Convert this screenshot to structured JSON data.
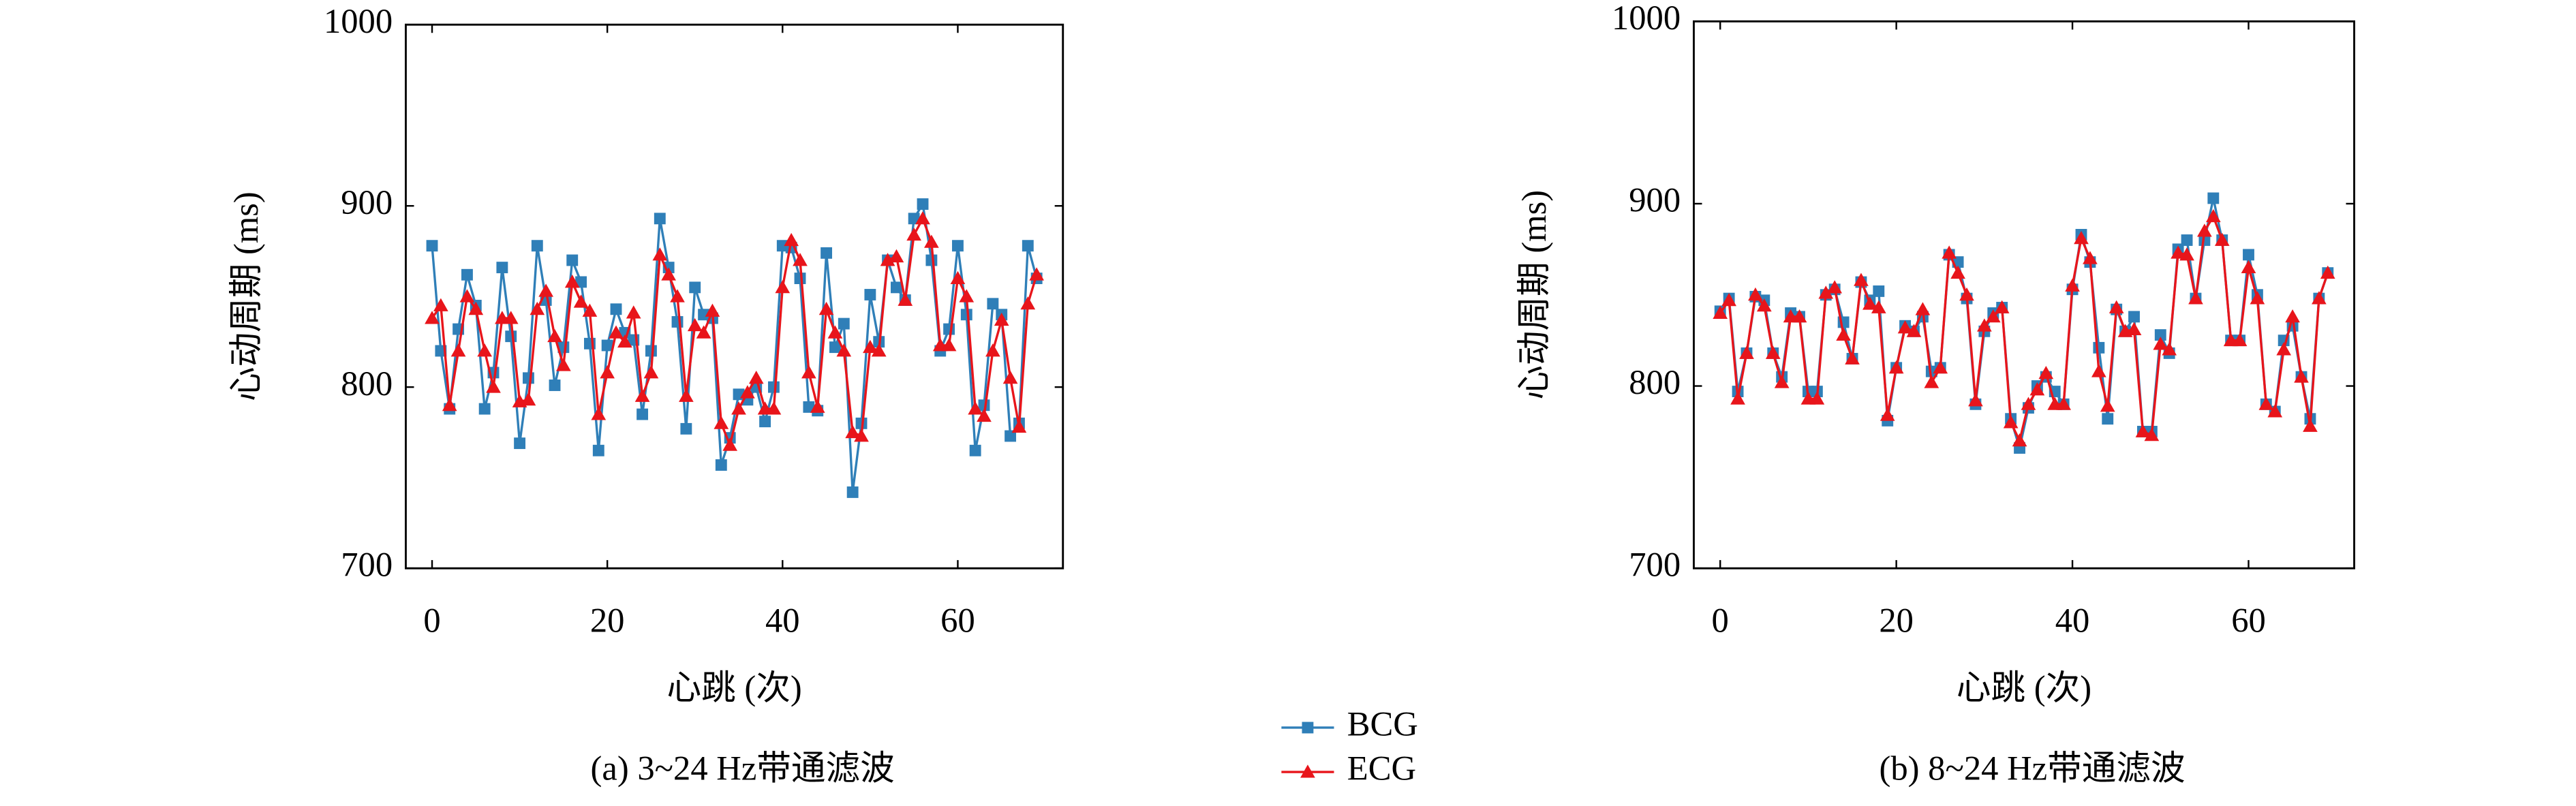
{
  "chart_data": [
    {
      "type": "line",
      "caption": "(a) 3~24 Hz带通滤波",
      "xlabel": "心跳 (次)",
      "ylabel": "心动周期 (ms)",
      "xlim": [
        -3,
        72
      ],
      "xticks": [
        0,
        20,
        40,
        60
      ],
      "ylim": [
        700,
        1000
      ],
      "yticks": [
        700,
        800,
        900,
        1000
      ],
      "x": [
        0,
        1,
        2,
        3,
        4,
        5,
        6,
        7,
        8,
        9,
        10,
        11,
        12,
        13,
        14,
        15,
        16,
        17,
        18,
        19,
        20,
        21,
        22,
        23,
        24,
        25,
        26,
        27,
        28,
        29,
        30,
        31,
        32,
        33,
        34,
        35,
        36,
        37,
        38,
        39,
        40,
        41,
        42,
        43,
        44,
        45,
        46,
        47,
        48,
        49,
        50,
        51,
        52,
        53,
        54,
        55,
        56,
        57,
        58,
        59,
        60,
        61,
        62,
        63,
        64,
        65,
        66,
        67,
        68,
        69
      ],
      "series": [
        {
          "name": "BCG",
          "color": "#2f7fb8",
          "marker": "square",
          "values": [
            878,
            820,
            788,
            832,
            862,
            845,
            788,
            808,
            866,
            828,
            769,
            805,
            878,
            848,
            801,
            822,
            870,
            858,
            824,
            765,
            823,
            843,
            830,
            826,
            785,
            820,
            893,
            866,
            836,
            777,
            855,
            840,
            838,
            757,
            772,
            796,
            793,
            800,
            781,
            800,
            878,
            877,
            860,
            789,
            787,
            874,
            822,
            835,
            742,
            780,
            851,
            825,
            870,
            855,
            848,
            893,
            901,
            870,
            820,
            832,
            878,
            840,
            765,
            790,
            846,
            840,
            773,
            780,
            878,
            860
          ]
        },
        {
          "name": "ECG",
          "color": "#e8151b",
          "marker": "triangle",
          "values": [
            838,
            845,
            790,
            820,
            850,
            843,
            820,
            800,
            838,
            838,
            792,
            793,
            843,
            853,
            828,
            812,
            858,
            847,
            842,
            785,
            808,
            830,
            825,
            841,
            795,
            808,
            873,
            862,
            850,
            795,
            834,
            830,
            842,
            780,
            768,
            788,
            797,
            805,
            788,
            788,
            855,
            881,
            870,
            808,
            789,
            843,
            830,
            820,
            775,
            773,
            822,
            820,
            870,
            872,
            848,
            884,
            893,
            880,
            823,
            823,
            860,
            850,
            788,
            784,
            820,
            837,
            805,
            778,
            846,
            862
          ]
        }
      ]
    },
    {
      "type": "line",
      "caption": "(b) 8~24 Hz带通滤波",
      "xlabel": "心跳 (次)",
      "ylabel": "心动周期 (ms)",
      "xlim": [
        -3,
        72
      ],
      "xticks": [
        0,
        20,
        40,
        60
      ],
      "ylim": [
        700,
        1000
      ],
      "yticks": [
        700,
        800,
        900,
        1000
      ],
      "x": [
        0,
        1,
        2,
        3,
        4,
        5,
        6,
        7,
        8,
        9,
        10,
        11,
        12,
        13,
        14,
        15,
        16,
        17,
        18,
        19,
        20,
        21,
        22,
        23,
        24,
        25,
        26,
        27,
        28,
        29,
        30,
        31,
        32,
        33,
        34,
        35,
        36,
        37,
        38,
        39,
        40,
        41,
        42,
        43,
        44,
        45,
        46,
        47,
        48,
        49,
        50,
        51,
        52,
        53,
        54,
        55,
        56,
        57,
        58,
        59,
        60,
        61,
        62,
        63,
        64,
        65,
        66,
        67,
        68,
        69
      ],
      "series": [
        {
          "name": "BCG",
          "color": "#2f7fb8",
          "marker": "square",
          "values": [
            841,
            848,
            797,
            818,
            849,
            847,
            818,
            805,
            840,
            838,
            797,
            797,
            850,
            853,
            835,
            815,
            857,
            847,
            852,
            781,
            810,
            833,
            830,
            838,
            808,
            810,
            872,
            868,
            848,
            790,
            830,
            840,
            843,
            782,
            766,
            788,
            800,
            805,
            797,
            790,
            853,
            883,
            868,
            821,
            782,
            842,
            830,
            838,
            775,
            775,
            828,
            818,
            875,
            880,
            848,
            880,
            903,
            880,
            825,
            825,
            872,
            850,
            790,
            786,
            825,
            833,
            805,
            782,
            848,
            862
          ]
        },
        {
          "name": "ECG",
          "color": "#e8151b",
          "marker": "triangle",
          "values": [
            840,
            847,
            793,
            818,
            850,
            844,
            818,
            802,
            838,
            838,
            793,
            793,
            851,
            854,
            828,
            815,
            858,
            845,
            843,
            784,
            810,
            832,
            830,
            842,
            802,
            810,
            873,
            862,
            850,
            792,
            833,
            838,
            843,
            780,
            770,
            790,
            798,
            807,
            790,
            790,
            855,
            881,
            870,
            808,
            789,
            843,
            830,
            831,
            775,
            773,
            823,
            820,
            873,
            872,
            848,
            885,
            893,
            880,
            825,
            825,
            865,
            848,
            790,
            786,
            820,
            838,
            805,
            778,
            848,
            862
          ]
        }
      ]
    }
  ]
}
